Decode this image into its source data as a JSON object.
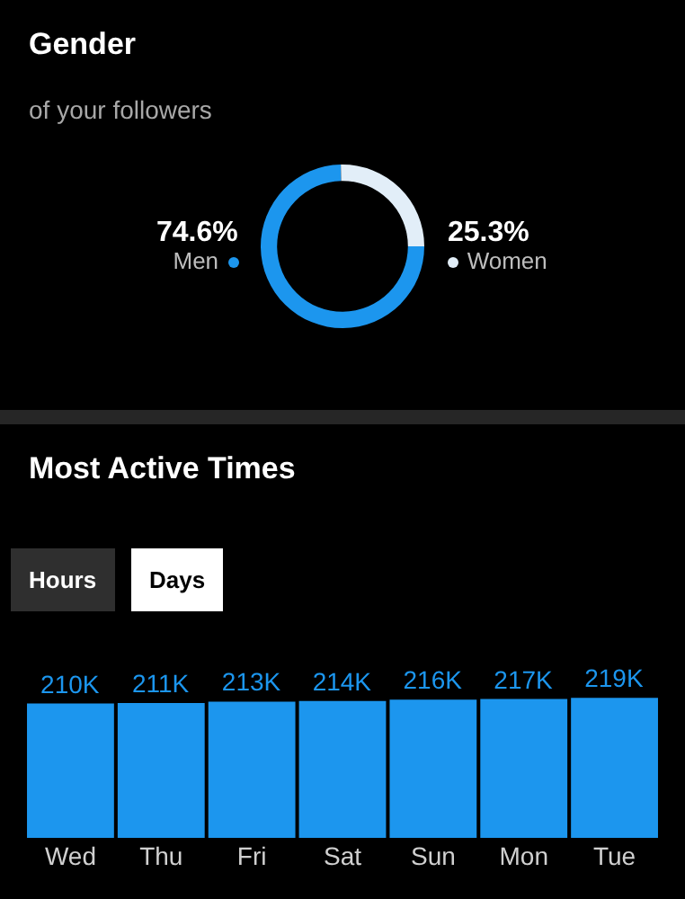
{
  "chart_data": [
    {
      "type": "donut",
      "title": "Gender",
      "subtitle": "of your followers",
      "categories": [
        "Men",
        "Women"
      ],
      "values": [
        74.6,
        25.3
      ],
      "value_labels": [
        "74.6%",
        "25.3%"
      ],
      "colors": [
        "#1c96ee",
        "#e2eef8"
      ]
    },
    {
      "type": "bar",
      "title": "Most Active Times",
      "annotations": [
        "Hours",
        "Days"
      ],
      "categories": [
        "Wed",
        "Thu",
        "Fri",
        "Sat",
        "Sun",
        "Mon",
        "Tue"
      ],
      "values": [
        210000,
        211000,
        213000,
        214000,
        216000,
        217000,
        219000
      ],
      "value_labels": [
        "210K",
        "211K",
        "213K",
        "214K",
        "216K",
        "217K",
        "219K"
      ],
      "color": "#1c96ee"
    }
  ]
}
